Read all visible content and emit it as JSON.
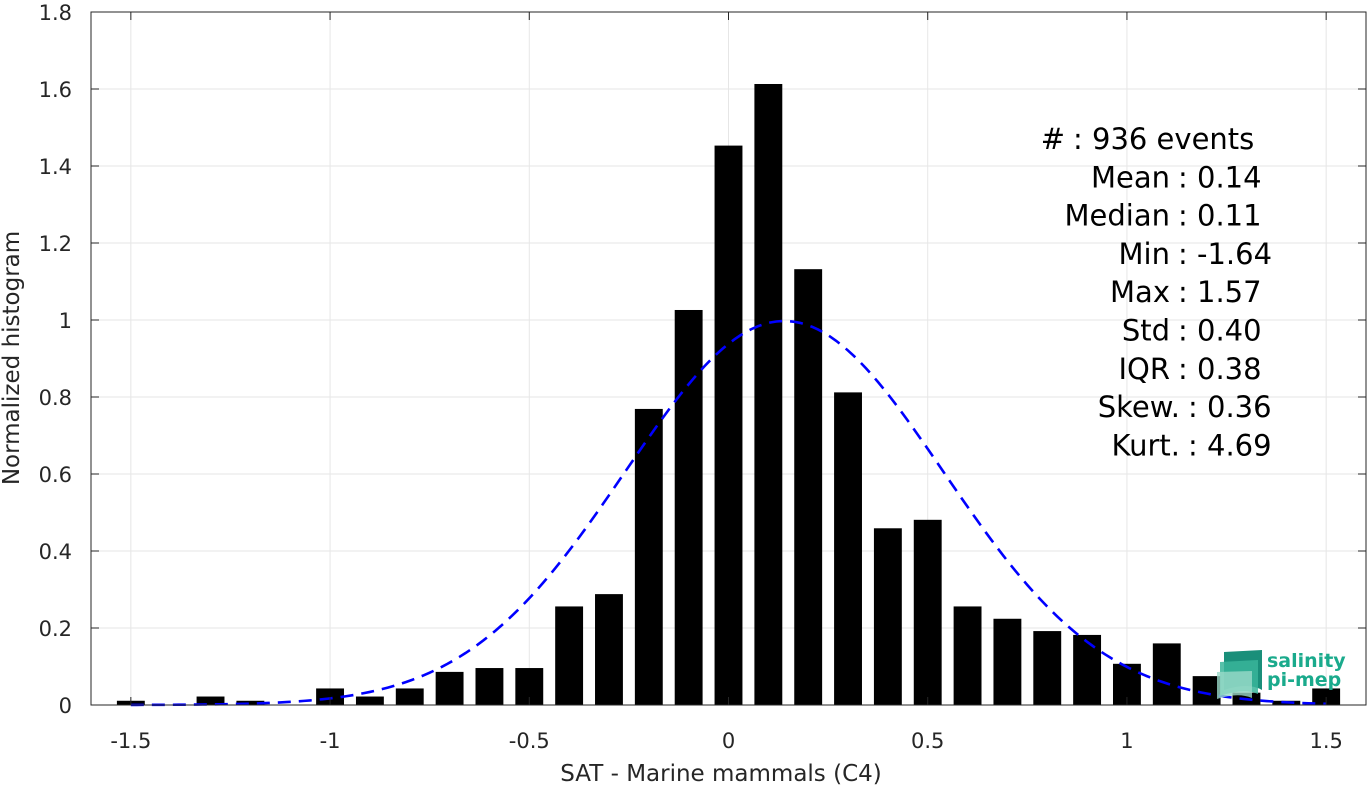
{
  "chart_data": {
    "type": "bar",
    "xlabel": "SAT - Marine mammals (C4)",
    "ylabel": "Normalized histogram",
    "xlim": [
      -1.6,
      1.6
    ],
    "ylim": [
      0,
      1.8
    ],
    "xticks": [
      -1.5,
      -1,
      -0.5,
      0,
      0.5,
      1,
      1.5
    ],
    "xtick_labels": [
      "-1.5",
      "-1",
      "-0.5",
      "0",
      "0.5",
      "1",
      "1.5"
    ],
    "yticks": [
      0,
      0.2,
      0.4,
      0.6,
      0.8,
      1,
      1.2,
      1.4,
      1.6,
      1.8
    ],
    "ytick_labels": [
      "0",
      "0.2",
      "0.4",
      "0.6",
      "0.8",
      "1",
      "1.2",
      "1.4",
      "1.6",
      "1.8"
    ],
    "grid": true,
    "bar_width": 0.07,
    "bar_color": "#000000",
    "bins": [
      {
        "x": -1.5,
        "y": 0.011
      },
      {
        "x": -1.3,
        "y": 0.022
      },
      {
        "x": -1.2,
        "y": 0.011
      },
      {
        "x": -1.0,
        "y": 0.043
      },
      {
        "x": -0.9,
        "y": 0.022
      },
      {
        "x": -0.8,
        "y": 0.043
      },
      {
        "x": -0.7,
        "y": 0.086
      },
      {
        "x": -0.6,
        "y": 0.096
      },
      {
        "x": -0.5,
        "y": 0.096
      },
      {
        "x": -0.4,
        "y": 0.256
      },
      {
        "x": -0.3,
        "y": 0.288
      },
      {
        "x": -0.2,
        "y": 0.769
      },
      {
        "x": -0.1,
        "y": 1.026
      },
      {
        "x": 0.0,
        "y": 1.453
      },
      {
        "x": 0.1,
        "y": 1.613
      },
      {
        "x": 0.2,
        "y": 1.132
      },
      {
        "x": 0.3,
        "y": 0.812
      },
      {
        "x": 0.4,
        "y": 0.459
      },
      {
        "x": 0.5,
        "y": 0.481
      },
      {
        "x": 0.6,
        "y": 0.256
      },
      {
        "x": 0.7,
        "y": 0.224
      },
      {
        "x": 0.8,
        "y": 0.192
      },
      {
        "x": 0.9,
        "y": 0.182
      },
      {
        "x": 1.0,
        "y": 0.107
      },
      {
        "x": 1.1,
        "y": 0.16
      },
      {
        "x": 1.2,
        "y": 0.075
      },
      {
        "x": 1.3,
        "y": 0.032
      },
      {
        "x": 1.4,
        "y": 0.011
      },
      {
        "x": 1.5,
        "y": 0.043
      }
    ],
    "fit_curve": {
      "type": "normal",
      "mean": 0.14,
      "std": 0.4,
      "x_range": [
        -1.5,
        1.5
      ],
      "color": "#0000ff",
      "style": "dashed"
    },
    "annotations": [
      "#  : 936 events",
      "Mean : 0.14",
      "Median : 0.11",
      "Min : -1.64",
      "Max : 1.57",
      "Std : 0.40",
      "IQR : 0.38",
      "Skew. : 0.36",
      "Kurt. : 4.69"
    ],
    "annotation_placement": "top-right"
  },
  "logo": {
    "line1": "salinity",
    "line2": "pi-mep",
    "color": "#1aaa8c"
  }
}
